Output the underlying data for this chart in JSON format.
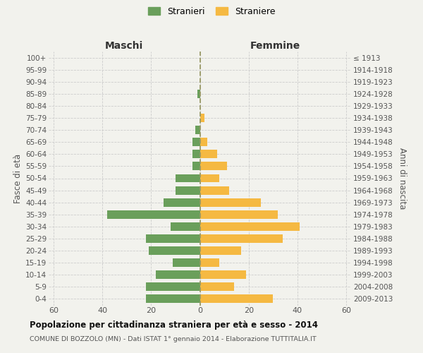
{
  "age_groups": [
    "0-4",
    "5-9",
    "10-14",
    "15-19",
    "20-24",
    "25-29",
    "30-34",
    "35-39",
    "40-44",
    "45-49",
    "50-54",
    "55-59",
    "60-64",
    "65-69",
    "70-74",
    "75-79",
    "80-84",
    "85-89",
    "90-94",
    "95-99",
    "100+"
  ],
  "birth_years": [
    "2009-2013",
    "2004-2008",
    "1999-2003",
    "1994-1998",
    "1989-1993",
    "1984-1988",
    "1979-1983",
    "1974-1978",
    "1969-1973",
    "1964-1968",
    "1959-1963",
    "1954-1958",
    "1949-1953",
    "1944-1948",
    "1939-1943",
    "1934-1938",
    "1929-1933",
    "1924-1928",
    "1919-1923",
    "1914-1918",
    "≤ 1913"
  ],
  "males": [
    22,
    22,
    18,
    11,
    21,
    22,
    12,
    38,
    15,
    10,
    10,
    3,
    3,
    3,
    2,
    0,
    0,
    1,
    0,
    0,
    0
  ],
  "females": [
    30,
    14,
    19,
    8,
    17,
    34,
    41,
    32,
    25,
    12,
    8,
    11,
    7,
    3,
    0,
    2,
    0,
    0,
    0,
    0,
    0
  ],
  "male_color": "#6a9f5b",
  "female_color": "#f5b942",
  "bg_color": "#f2f2ed",
  "grid_color": "#cccccc",
  "dashed_line_color": "#999966",
  "title": "Popolazione per cittadinanza straniera per età e sesso - 2014",
  "subtitle": "COMUNE DI BOZZOLO (MN) - Dati ISTAT 1° gennaio 2014 - Elaborazione TUTTITALIA.IT",
  "ylabel_left": "Fasce di età",
  "ylabel_right": "Anni di nascita",
  "xlabel_left": "Maschi",
  "xlabel_right": "Femmine",
  "legend_male": "Stranieri",
  "legend_female": "Straniere",
  "xlim": 62
}
